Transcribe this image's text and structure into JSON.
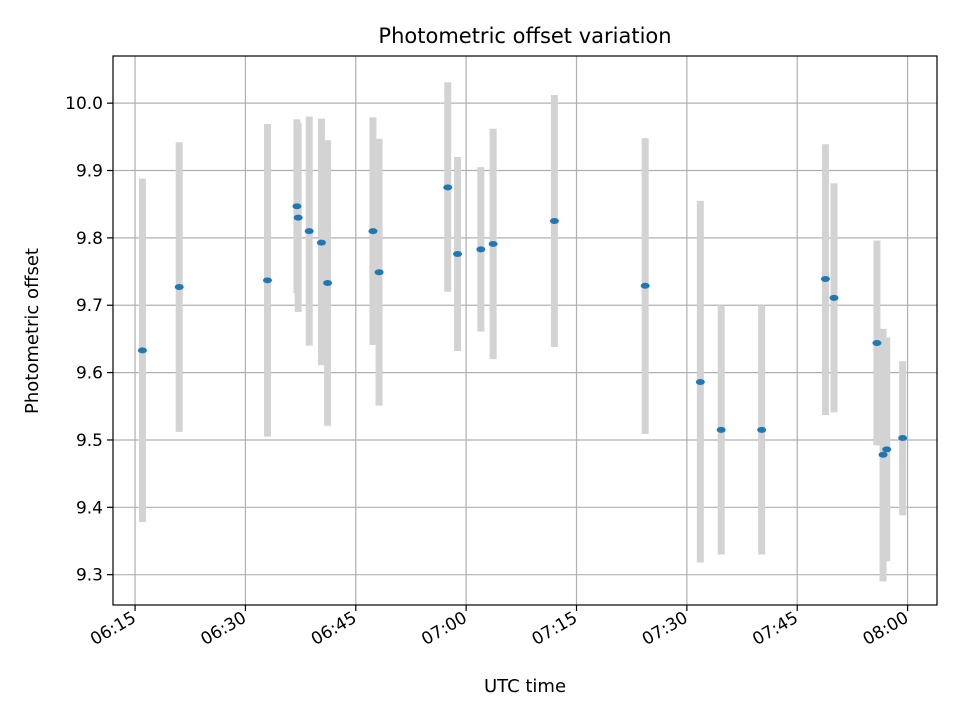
{
  "chart_data": {
    "type": "scatter",
    "title": "Photometric offset variation",
    "xlabel": "UTC time",
    "ylabel": "Photometric offset",
    "x_tick_labels": [
      "06:15",
      "06:30",
      "06:45",
      "07:00",
      "07:15",
      "07:30",
      "07:45",
      "08:00"
    ],
    "x_ticks": [
      "06:15",
      "06:30",
      "06:45",
      "07:00",
      "07:15",
      "07:30",
      "07:45",
      "08:00"
    ],
    "y_ticks": [
      9.3,
      9.4,
      9.5,
      9.6,
      9.7,
      9.8,
      9.9,
      10.0
    ],
    "y_tick_labels": [
      "9.3",
      "9.4",
      "9.5",
      "9.6",
      "9.7",
      "9.8",
      "9.9",
      "10.0"
    ],
    "xlim": [
      "06:12:00",
      "08:04:00"
    ],
    "ylim": [
      9.255,
      10.07
    ],
    "grid": true,
    "colors": {
      "point": "#1f77b4",
      "errorbar": "#d3d3d3",
      "grid": "#b0b0b0"
    },
    "series": [
      {
        "points": [
          {
            "x": "06:16:00",
            "y": 9.633,
            "ylo": 9.378,
            "yhi": 9.888
          },
          {
            "x": "06:21:00",
            "y": 9.727,
            "ylo": 9.512,
            "yhi": 9.942
          },
          {
            "x": "06:33:00",
            "y": 9.737,
            "ylo": 9.505,
            "yhi": 9.969
          },
          {
            "x": "06:37:00",
            "y": 9.847,
            "ylo": 9.718,
            "yhi": 9.976
          },
          {
            "x": "06:37:10",
            "y": 9.83,
            "ylo": 9.69,
            "yhi": 9.97
          },
          {
            "x": "06:38:40",
            "y": 9.81,
            "ylo": 9.64,
            "yhi": 9.98
          },
          {
            "x": "06:40:20",
            "y": 9.793,
            "ylo": 9.611,
            "yhi": 9.977
          },
          {
            "x": "06:41:10",
            "y": 9.733,
            "ylo": 9.521,
            "yhi": 9.945
          },
          {
            "x": "06:47:20",
            "y": 9.81,
            "ylo": 9.641,
            "yhi": 9.979
          },
          {
            "x": "06:48:10",
            "y": 9.749,
            "ylo": 9.551,
            "yhi": 9.947
          },
          {
            "x": "06:57:30",
            "y": 9.875,
            "ylo": 9.72,
            "yhi": 10.031
          },
          {
            "x": "06:58:50",
            "y": 9.776,
            "ylo": 9.632,
            "yhi": 9.92
          },
          {
            "x": "07:02:00",
            "y": 9.783,
            "ylo": 9.661,
            "yhi": 9.905
          },
          {
            "x": "07:03:40",
            "y": 9.791,
            "ylo": 9.62,
            "yhi": 9.962
          },
          {
            "x": "07:12:00",
            "y": 9.825,
            "ylo": 9.638,
            "yhi": 10.012
          },
          {
            "x": "07:24:20",
            "y": 9.729,
            "ylo": 9.509,
            "yhi": 9.948
          },
          {
            "x": "07:31:50",
            "y": 9.586,
            "ylo": 9.318,
            "yhi": 9.855
          },
          {
            "x": "07:34:40",
            "y": 9.515,
            "ylo": 9.33,
            "yhi": 9.7
          },
          {
            "x": "07:40:10",
            "y": 9.515,
            "ylo": 9.33,
            "yhi": 9.7
          },
          {
            "x": "07:48:50",
            "y": 9.739,
            "ylo": 9.537,
            "yhi": 9.939
          },
          {
            "x": "07:50:00",
            "y": 9.711,
            "ylo": 9.541,
            "yhi": 9.881
          },
          {
            "x": "07:55:50",
            "y": 9.644,
            "ylo": 9.492,
            "yhi": 9.796
          },
          {
            "x": "07:56:40",
            "y": 9.478,
            "ylo": 9.29,
            "yhi": 9.665
          },
          {
            "x": "07:57:10",
            "y": 9.486,
            "ylo": 9.32,
            "yhi": 9.652
          },
          {
            "x": "07:59:20",
            "y": 9.503,
            "ylo": 9.388,
            "yhi": 9.617
          }
        ]
      }
    ]
  }
}
